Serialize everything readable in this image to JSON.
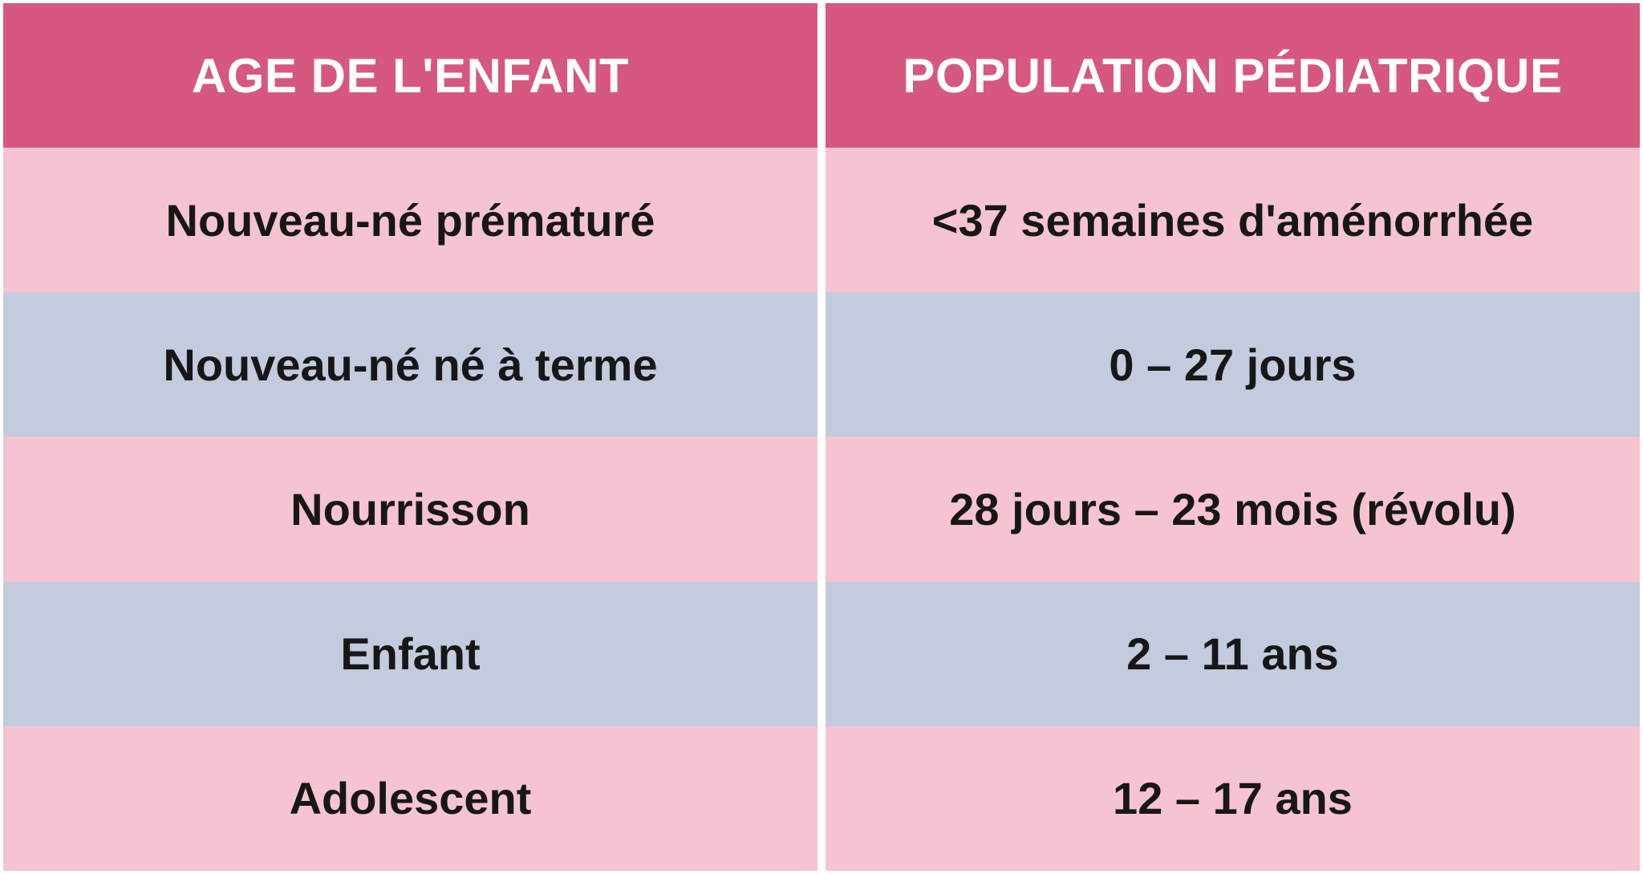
{
  "table": {
    "header": {
      "age_label": "AGE DE L'ENFANT",
      "population_label": "POPULATION PÉDIATRIQUE"
    },
    "rows": [
      {
        "age": "Nouveau-né prématuré",
        "population": "<37 semaines d'aménorrhée"
      },
      {
        "age": "Nouveau-né né à terme",
        "population": "0 – 27 jours"
      },
      {
        "age": "Nourrisson",
        "population": "28 jours – 23 mois (révolu)"
      },
      {
        "age": "Enfant",
        "population": "2 – 11 ans"
      },
      {
        "age": "Adolescent",
        "population": "12 – 17 ans"
      }
    ]
  },
  "colors": {
    "header_bg": "#d6587e",
    "row_pink": "#f6c4d1",
    "row_lavender": "#c3cbdf",
    "header_text": "#ffffff",
    "body_text": "#171717",
    "gutter": "#ffffff"
  }
}
